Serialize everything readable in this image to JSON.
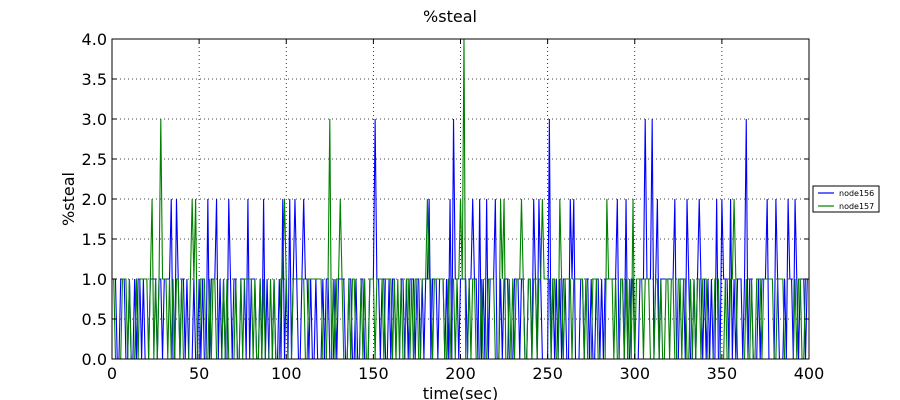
{
  "chart_data": {
    "type": "line",
    "title": "%steal",
    "xlabel": "time(sec)",
    "ylabel": "%steal",
    "xlim": [
      0,
      400
    ],
    "ylim": [
      0,
      4.0
    ],
    "xticks": [
      0,
      50,
      100,
      150,
      200,
      250,
      300,
      350,
      400
    ],
    "yticks": [
      0.0,
      0.5,
      1.0,
      1.5,
      2.0,
      2.5,
      3.0,
      3.5,
      4.0
    ],
    "xtick_labels": [
      "0",
      "50",
      "100",
      "150",
      "200",
      "250",
      "300",
      "350",
      "400"
    ],
    "ytick_labels": [
      "0.0",
      "0.5",
      "1.0",
      "1.5",
      "2.0",
      "2.5",
      "3.0",
      "3.5",
      "4.0"
    ],
    "grid": true,
    "legend_position": "right",
    "series": [
      {
        "name": "node156",
        "color": "#0000ff",
        "spikes": [
          {
            "x": 34,
            "y": 2
          },
          {
            "x": 37,
            "y": 2
          },
          {
            "x": 55,
            "y": 2
          },
          {
            "x": 60,
            "y": 2
          },
          {
            "x": 67,
            "y": 2
          },
          {
            "x": 78,
            "y": 2
          },
          {
            "x": 87,
            "y": 2
          },
          {
            "x": 98,
            "y": 2
          },
          {
            "x": 102,
            "y": 2
          },
          {
            "x": 105,
            "y": 2
          },
          {
            "x": 110,
            "y": 2
          },
          {
            "x": 151,
            "y": 3
          },
          {
            "x": 182,
            "y": 2
          },
          {
            "x": 194,
            "y": 2
          },
          {
            "x": 196,
            "y": 3
          },
          {
            "x": 207,
            "y": 2
          },
          {
            "x": 211,
            "y": 2
          },
          {
            "x": 215,
            "y": 2
          },
          {
            "x": 220,
            "y": 2
          },
          {
            "x": 242,
            "y": 2
          },
          {
            "x": 245,
            "y": 2
          },
          {
            "x": 251,
            "y": 3
          },
          {
            "x": 263,
            "y": 2
          },
          {
            "x": 265,
            "y": 2
          },
          {
            "x": 290,
            "y": 2
          },
          {
            "x": 295,
            "y": 2
          },
          {
            "x": 306,
            "y": 3
          },
          {
            "x": 310,
            "y": 3
          },
          {
            "x": 313,
            "y": 2
          },
          {
            "x": 323,
            "y": 2
          },
          {
            "x": 330,
            "y": 2
          },
          {
            "x": 337,
            "y": 2
          },
          {
            "x": 347,
            "y": 2
          },
          {
            "x": 350,
            "y": 2
          },
          {
            "x": 355,
            "y": 2
          },
          {
            "x": 364,
            "y": 3
          },
          {
            "x": 376,
            "y": 2
          },
          {
            "x": 381,
            "y": 2
          },
          {
            "x": 388,
            "y": 2
          },
          {
            "x": 392,
            "y": 2
          }
        ]
      },
      {
        "name": "node157",
        "color": "#008000",
        "spikes": [
          {
            "x": 23,
            "y": 2
          },
          {
            "x": 28,
            "y": 3
          },
          {
            "x": 46,
            "y": 2
          },
          {
            "x": 48,
            "y": 2
          },
          {
            "x": 99,
            "y": 2
          },
          {
            "x": 125,
            "y": 3
          },
          {
            "x": 131,
            "y": 2
          },
          {
            "x": 181,
            "y": 2
          },
          {
            "x": 200,
            "y": 2
          },
          {
            "x": 202,
            "y": 4
          },
          {
            "x": 223,
            "y": 2
          },
          {
            "x": 225,
            "y": 2
          },
          {
            "x": 235,
            "y": 2
          },
          {
            "x": 247,
            "y": 2
          },
          {
            "x": 257,
            "y": 2
          },
          {
            "x": 284,
            "y": 2
          },
          {
            "x": 299,
            "y": 2
          },
          {
            "x": 357,
            "y": 2
          }
        ]
      }
    ]
  }
}
